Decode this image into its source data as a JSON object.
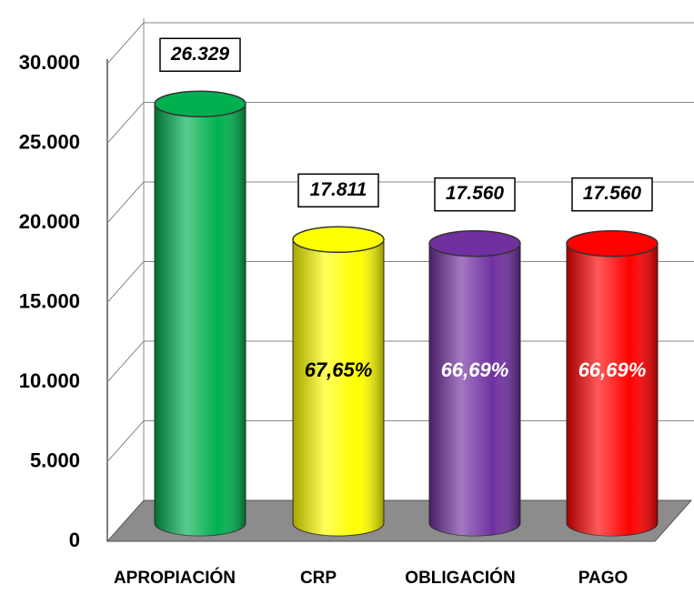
{
  "chart_data": {
    "type": "cylinder",
    "categories": [
      "APROPIACIÓN",
      "CRP",
      "OBLIGACIÓN",
      "PAGO"
    ],
    "values": [
      26329,
      17811,
      17560,
      17560
    ],
    "value_labels": [
      "26.329",
      "17.811",
      "17.560",
      "17.560"
    ],
    "percent_labels": [
      null,
      "67,65%",
      "66,69%",
      "66,69%"
    ],
    "colors": [
      "#00b050",
      "#ffff00",
      "#7030a0",
      "#ff0000"
    ],
    "ylim": [
      0,
      30000
    ],
    "yticks": [
      0,
      {
        "value": 5000,
        "label": "5.000"
      },
      {
        "value": 10000,
        "label": "10.000"
      },
      {
        "value": 15000,
        "label": "15.000"
      },
      {
        "value": 20000,
        "label": "20.000"
      },
      {
        "value": 25000,
        "label": "25.000"
      },
      {
        "value": 30000,
        "label": "30.000"
      }
    ],
    "grid": true
  }
}
